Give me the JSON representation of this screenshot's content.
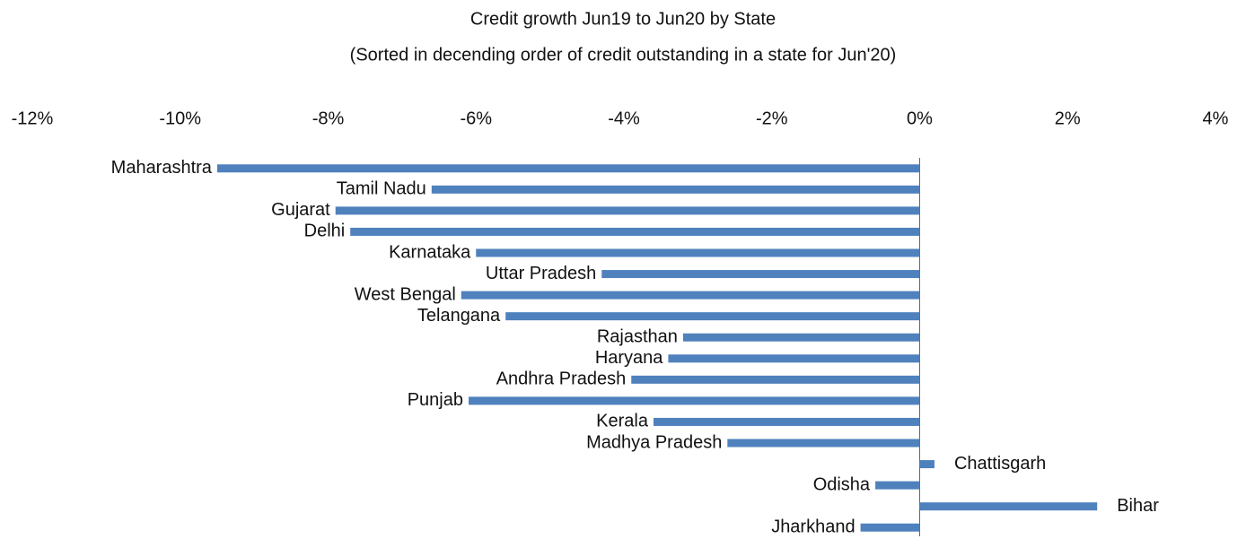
{
  "chart_data": {
    "type": "bar",
    "orientation": "horizontal",
    "title": "Credit growth Jun19 to Jun20 by State",
    "subtitle": "(Sorted in decending order of credit outstanding in a state for Jun'20)",
    "categories": [
      "Maharashtra",
      "Tamil Nadu",
      "Gujarat",
      "Delhi",
      "Karnataka",
      "Uttar Pradesh",
      "West Bengal",
      "Telangana",
      "Rajasthan",
      "Haryana",
      "Andhra Pradesh",
      "Punjab",
      "Kerala",
      "Madhya Pradesh",
      "Chattisgarh",
      "Odisha",
      "Bihar",
      "Jharkhand"
    ],
    "values": [
      -9.5,
      -6.6,
      -7.9,
      -7.7,
      -6.0,
      -4.3,
      -6.2,
      -5.6,
      -3.2,
      -3.4,
      -3.9,
      -6.1,
      -3.6,
      -2.6,
      0.2,
      -0.6,
      2.4,
      -0.8
    ],
    "color": "#4f81bd",
    "xlim": [
      -12,
      4
    ],
    "xticks": [
      {
        "value": -12,
        "label": "-12%"
      },
      {
        "value": -10,
        "label": "-10%"
      },
      {
        "value": -8,
        "label": "-8%"
      },
      {
        "value": -6,
        "label": "-6%"
      },
      {
        "value": -4,
        "label": "-4%"
      },
      {
        "value": -2,
        "label": "-2%"
      },
      {
        "value": 0,
        "label": "0%"
      },
      {
        "value": 2,
        "label": "2%"
      },
      {
        "value": 4,
        "label": "4%"
      }
    ],
    "grid": false
  }
}
